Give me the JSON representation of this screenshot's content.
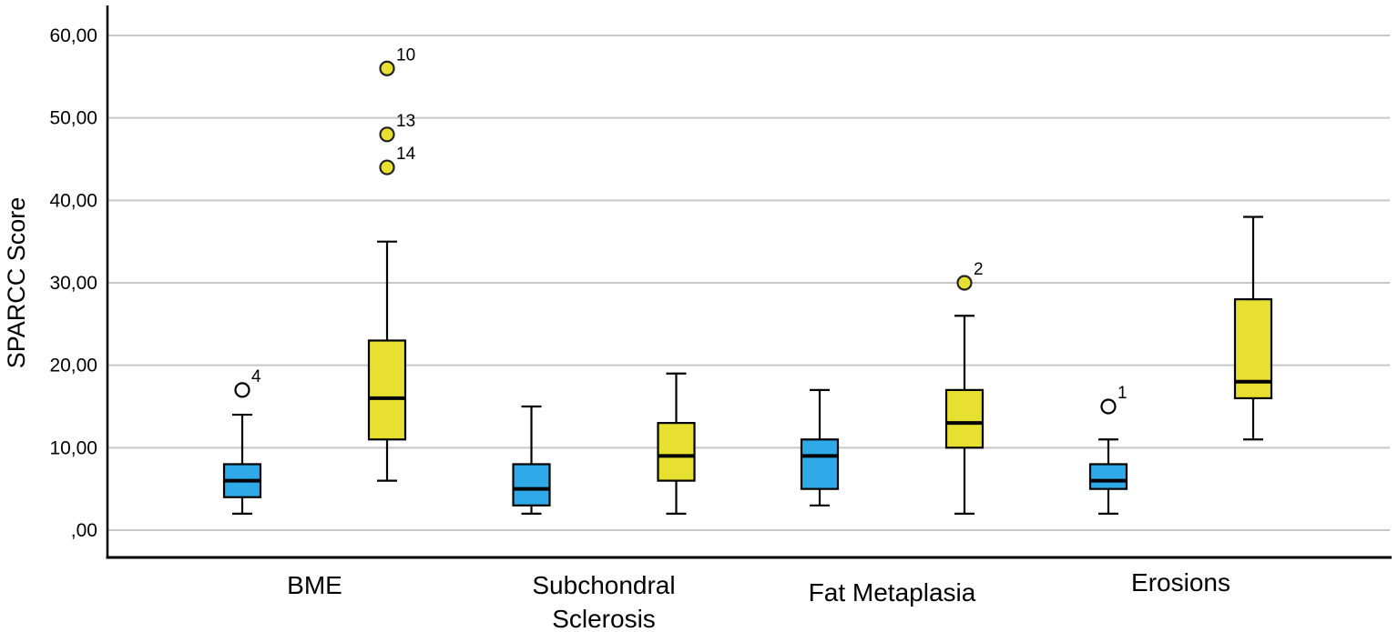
{
  "chart_data": {
    "type": "boxplot",
    "title": "",
    "xlabel": "",
    "ylabel": "SPARCC Score",
    "ylim": [
      0,
      63
    ],
    "grid": true,
    "legend": "none",
    "gridline_color": "#C7C7C7",
    "axis_color": "#000000",
    "series_colors": {
      "blue": "#2FA9E8",
      "yellow": "#E8E030"
    },
    "yticks": [
      {
        "value": 0,
        "label": ",00"
      },
      {
        "value": 10,
        "label": "10,00"
      },
      {
        "value": 20,
        "label": "20,00"
      },
      {
        "value": 30,
        "label": "30,00"
      },
      {
        "value": 40,
        "label": "40,00"
      },
      {
        "value": 50,
        "label": "50,00"
      },
      {
        "value": 60,
        "label": "60,00"
      }
    ],
    "label_dy": [
      0,
      0,
      8,
      -3
    ],
    "categories": [
      {
        "label_lines": [
          "BME"
        ],
        "boxes": [
          {
            "series": "blue",
            "whisker_low": 2,
            "q1": 4,
            "median": 6,
            "q3": 8,
            "whisker_high": 14,
            "outliers": [
              {
                "value": 17,
                "label": "4"
              }
            ]
          },
          {
            "series": "yellow",
            "whisker_low": 6,
            "q1": 11,
            "median": 16,
            "q3": 23,
            "whisker_high": 35,
            "outliers": [
              {
                "value": 44,
                "label": "14"
              },
              {
                "value": 48,
                "label": "13"
              },
              {
                "value": 56,
                "label": "10"
              }
            ]
          }
        ]
      },
      {
        "label_lines": [
          "Subchondral",
          "Sclerosis"
        ],
        "boxes": [
          {
            "series": "blue",
            "whisker_low": 2,
            "q1": 3,
            "median": 5,
            "q3": 8,
            "whisker_high": 15,
            "outliers": []
          },
          {
            "series": "yellow",
            "whisker_low": 2,
            "q1": 6,
            "median": 9,
            "q3": 13,
            "whisker_high": 19,
            "outliers": []
          }
        ]
      },
      {
        "label_lines": [
          "Fat Metaplasia"
        ],
        "boxes": [
          {
            "series": "blue",
            "whisker_low": 3,
            "q1": 5,
            "median": 9,
            "q3": 11,
            "whisker_high": 17,
            "outliers": []
          },
          {
            "series": "yellow",
            "whisker_low": 2,
            "q1": 10,
            "median": 13,
            "q3": 17,
            "whisker_high": 26,
            "outliers": [
              {
                "value": 30,
                "label": "2"
              }
            ]
          }
        ]
      },
      {
        "label_lines": [
          "Erosions"
        ],
        "boxes": [
          {
            "series": "blue",
            "whisker_low": 2,
            "q1": 5,
            "median": 6,
            "q3": 8,
            "whisker_high": 11,
            "outliers": [
              {
                "value": 15,
                "label": "1"
              }
            ]
          },
          {
            "series": "yellow",
            "whisker_low": 11,
            "q1": 16,
            "median": 18,
            "q3": 28,
            "whisker_high": 38,
            "outliers": []
          }
        ]
      }
    ]
  }
}
